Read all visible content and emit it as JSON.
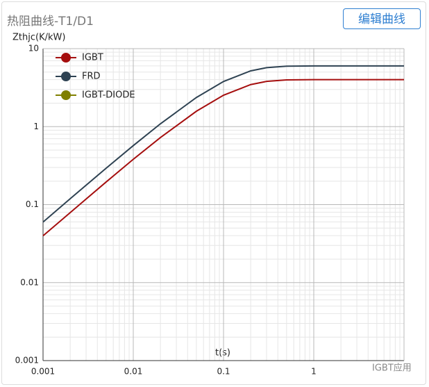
{
  "header": {
    "title": "热阻曲线-T1/D1",
    "button": "编辑曲线"
  },
  "watermark": "IGBT应用",
  "chart_data": {
    "type": "line",
    "y_label": "Zthjc(K/kW)",
    "x_label": "t(s)",
    "x": [
      0.001,
      0.002,
      0.005,
      0.01,
      0.02,
      0.05,
      0.1,
      0.2,
      0.3,
      0.5,
      1,
      10
    ],
    "series": [
      {
        "name": "IGBT",
        "color": "#a50e0e",
        "values": [
          0.0398,
          0.079,
          0.195,
          0.381,
          0.725,
          1.574,
          2.528,
          3.459,
          3.8,
          3.973,
          4,
          4
        ]
      },
      {
        "name": "FRD",
        "color": "#2e4252",
        "values": [
          0.0597,
          0.119,
          0.293,
          0.571,
          1.088,
          2.361,
          3.793,
          5.188,
          5.7,
          5.96,
          6,
          6
        ]
      },
      {
        "name": "IGBT-DIODE",
        "color": "#7f7f00",
        "values": [
          null,
          null,
          null,
          null,
          null,
          null,
          null,
          null,
          null,
          null,
          null,
          null
        ]
      }
    ],
    "xlim": [
      0.001,
      10
    ],
    "xticks": [
      0.001,
      0.01,
      0.1,
      1
    ],
    "ylim": [
      0.001,
      10
    ],
    "yticks": [
      0.001,
      0.01,
      0.1,
      1,
      10
    ],
    "log_x": true,
    "log_y": true,
    "grid": true,
    "legend": "top-left"
  }
}
